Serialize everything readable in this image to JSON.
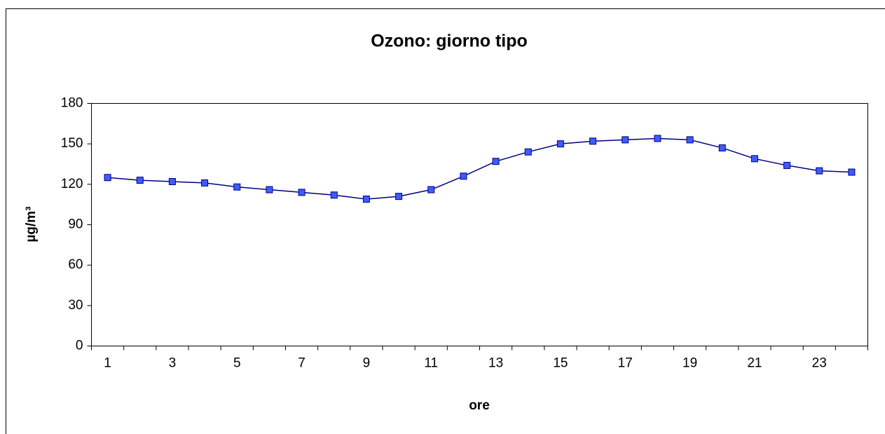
{
  "chart_data": {
    "type": "line",
    "title": "Ozono: giorno tipo",
    "xlabel": "ore",
    "ylabel": "µg/m³",
    "categories": [
      "1",
      null,
      "3",
      null,
      "5",
      null,
      "7",
      null,
      "9",
      null,
      "11",
      null,
      "13",
      null,
      "15",
      null,
      "17",
      null,
      "19",
      null,
      "21",
      null,
      "23",
      null
    ],
    "series": [
      {
        "name": "Ozono",
        "color": "#000080",
        "marker_color": "#3d5cff",
        "values": [
          125,
          123,
          122,
          121,
          118,
          116,
          114,
          112,
          109,
          111,
          116,
          126,
          137,
          144,
          150,
          152,
          153,
          154,
          153,
          147,
          139,
          134,
          130,
          129
        ]
      }
    ],
    "ylim": [
      0,
      180
    ],
    "yticks": [
      0,
      30,
      60,
      90,
      120,
      150,
      180
    ],
    "grid": false,
    "legend": false
  }
}
